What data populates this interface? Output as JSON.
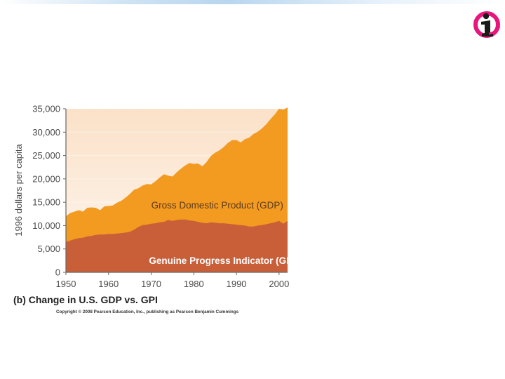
{
  "logo": {
    "icon": "info-i-icon",
    "colors": {
      "ring": "#e8157d",
      "figure": "#1a1a1a"
    }
  },
  "colors": {
    "gdp_area": "#f39a20",
    "gpi_area": "#c95f38",
    "background_top": "#fbe1c8",
    "background_bottom": "#fdf6ef",
    "axis": "#666666"
  },
  "chart_data": {
    "type": "area",
    "ylabel": "1996 dollars per capita",
    "xlabel": "",
    "xlim": [
      1950,
      2002
    ],
    "ylim": [
      0,
      35000
    ],
    "x_ticks": [
      "1950",
      "1960",
      "1970",
      "1980",
      "1990",
      "2000"
    ],
    "y_ticks": [
      "35,000",
      "30,000",
      "25,000",
      "20,000",
      "15,000",
      "10,000",
      "5,000",
      "0"
    ],
    "x": [
      1950,
      1951,
      1952,
      1953,
      1954,
      1955,
      1956,
      1957,
      1958,
      1959,
      1960,
      1961,
      1962,
      1963,
      1964,
      1965,
      1966,
      1967,
      1968,
      1969,
      1970,
      1971,
      1972,
      1973,
      1974,
      1975,
      1976,
      1977,
      1978,
      1979,
      1980,
      1981,
      1982,
      1983,
      1984,
      1985,
      1986,
      1987,
      1988,
      1989,
      1990,
      1991,
      1992,
      1993,
      1994,
      1995,
      1996,
      1997,
      1998,
      1999,
      2000,
      2001,
      2002
    ],
    "series": [
      {
        "name": "Gross Domestic Product (GDP)",
        "values": [
          12000,
          12700,
          13000,
          13300,
          13000,
          13800,
          13900,
          13800,
          13300,
          14100,
          14200,
          14300,
          14900,
          15300,
          16000,
          16800,
          17700,
          18000,
          18600,
          18900,
          18800,
          19500,
          20300,
          21000,
          20700,
          20500,
          21400,
          22200,
          22900,
          23400,
          23200,
          23300,
          22700,
          23600,
          24900,
          25600,
          26100,
          26800,
          27700,
          28300,
          28300,
          27800,
          28500,
          28800,
          29600,
          30100,
          30800,
          31700,
          32800,
          33800,
          35000,
          34800,
          35300
        ]
      },
      {
        "name": "Genuine Progress Indicator (GPI)",
        "values": [
          6500,
          6800,
          7100,
          7300,
          7400,
          7700,
          7800,
          8000,
          8100,
          8100,
          8200,
          8200,
          8300,
          8400,
          8500,
          8700,
          9100,
          9700,
          10100,
          10200,
          10400,
          10500,
          10700,
          10800,
          11200,
          11000,
          11200,
          11300,
          11300,
          11100,
          11000,
          10800,
          10600,
          10500,
          10700,
          10600,
          10500,
          10500,
          10400,
          10300,
          10200,
          10100,
          10000,
          9800,
          9800,
          10000,
          10100,
          10300,
          10500,
          10700,
          11000,
          10400,
          11000
        ]
      }
    ],
    "annotations": [
      {
        "text": "Gross Domestic Product (GDP)",
        "at": [
          1985.5,
          13700
        ]
      },
      {
        "text": "Genuine Progress Indicator (GPI)",
        "at": [
          1987,
          1800
        ]
      }
    ]
  },
  "caption": "(b) Change in U.S. GDP vs. GPI",
  "copyright": "Copyright © 2008 Pearson Education, Inc., publishing as Pearson Benjamin Cummings"
}
